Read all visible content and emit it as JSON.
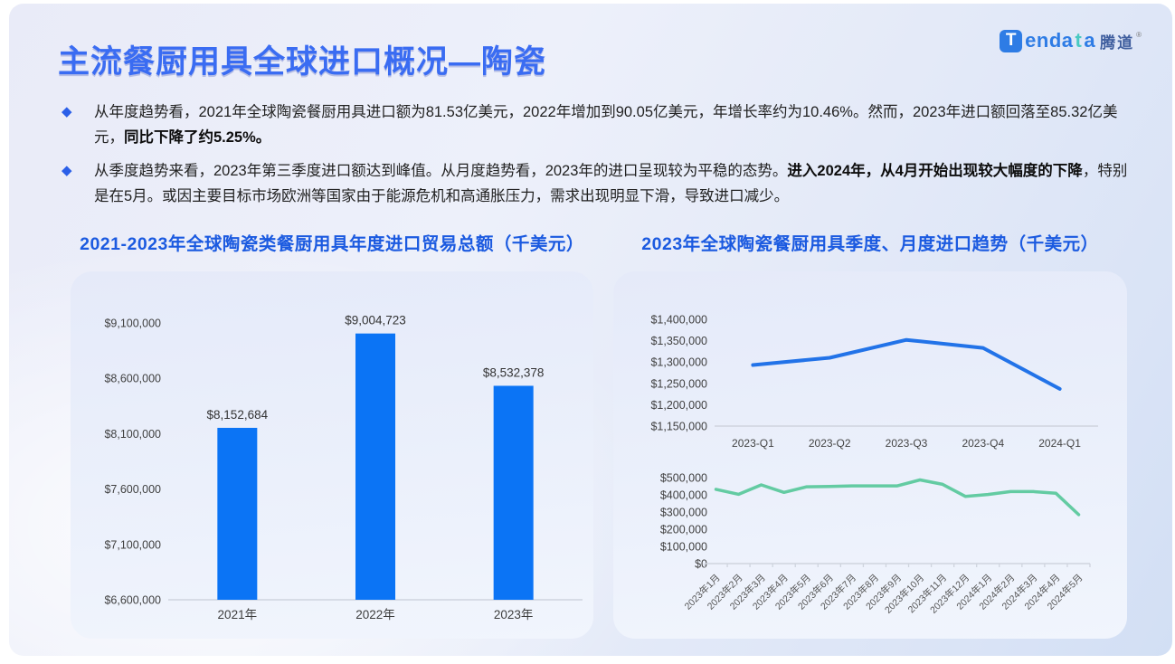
{
  "slide": {
    "title": "主流餐厨用具全球进口概况—陶瓷",
    "logo": {
      "t": "T",
      "enda": "enda",
      "t2": "t",
      "a": "a",
      "cn": "腾道",
      "reg": "®"
    },
    "bullet_marker": "◆",
    "bullets": [
      {
        "pre": "从年度趋势看，2021年全球陶瓷餐厨用具进口额为81.53亿美元，2022年增加到90.05亿美元，年增长率约为10.46%。然而，2023年进口额回落至85.32亿美元，",
        "bold": "同比下降了约5.25%。",
        "post": ""
      },
      {
        "pre": "从季度趋势来看，2023年第三季度进口额达到峰值。从月度趋势看，2023年的进口呈现较为平稳的态势。",
        "bold": "进入2024年，从4月开始出现较大幅度的下降",
        "post": "，特别是在5月。或因主要目标市场欧洲等国家由于能源危机和高通胀压力，需求出现明显下滑，导致进口减少。"
      }
    ],
    "left_chart_title": "2021-2023年全球陶瓷类餐厨用具年度进口贸易总额（千美元）",
    "right_chart_title": "2023年全球陶瓷餐厨用具季度、月度进口趋势（千美元）"
  },
  "chart_data": [
    {
      "id": "annual_bar",
      "type": "bar",
      "title": "2021-2023年全球陶瓷类餐厨用具年度进口贸易总额（千美元）",
      "categories": [
        "2021年",
        "2022年",
        "2023年"
      ],
      "values": [
        8152684,
        9004723,
        8532378
      ],
      "data_labels": [
        "$8,152,684",
        "$9,004,723",
        "$8,532,378"
      ],
      "xlabel": "",
      "ylabel": "千美元",
      "ylim": [
        6600000,
        9100000
      ],
      "ytick": 500000,
      "bar_color": "#0b74f5",
      "grid": false,
      "legend": "none"
    },
    {
      "id": "quarterly_line",
      "type": "line",
      "title": "2023年全球陶瓷餐厨用具季度进口趋势（千美元）",
      "categories": [
        "2023-Q1",
        "2023-Q2",
        "2023-Q3",
        "2023-Q4",
        "2024-Q1"
      ],
      "values": [
        1293000,
        1310000,
        1352000,
        1333000,
        1237000
      ],
      "xlabel": "",
      "ylabel": "千美元",
      "ylim": [
        1150000,
        1400000
      ],
      "ytick": 50000,
      "line_color": "#2273e8",
      "grid": false,
      "legend": "none"
    },
    {
      "id": "monthly_line",
      "type": "line",
      "title": "2023年全球陶瓷餐厨用具月度进口趋势（千美元）",
      "categories": [
        "2023年1月",
        "2023年2月",
        "2023年3月",
        "2023年4月",
        "2023年5月",
        "2023年6月",
        "2023年7月",
        "2023年8月",
        "2023年9月",
        "2023年10月",
        "2023年11月",
        "2023年12月",
        "2024年1月",
        "2024年2月",
        "2024年3月",
        "2024年4月",
        "2024年5月"
      ],
      "values": [
        432000,
        403000,
        458000,
        414000,
        447000,
        449000,
        452000,
        452000,
        452000,
        487000,
        461000,
        391000,
        402000,
        419000,
        419000,
        409000,
        285000
      ],
      "xlabel": "",
      "ylabel": "千美元",
      "ylim": [
        0,
        500000
      ],
      "ytick": 100000,
      "line_color": "#63cba2",
      "grid": false,
      "legend": "none"
    }
  ],
  "colors": {
    "accent_blue": "#2e7ce5",
    "title_blue": "#3a6cf2",
    "chart_title_blue": "#1b5ae0",
    "bar_blue": "#0b74f5",
    "quarter_line_blue": "#2273e8",
    "month_line_green": "#63cba2",
    "logo_teal": "#49c9c2",
    "axis_text": "#3f3f3f",
    "axis_line": "#cfd4de"
  }
}
